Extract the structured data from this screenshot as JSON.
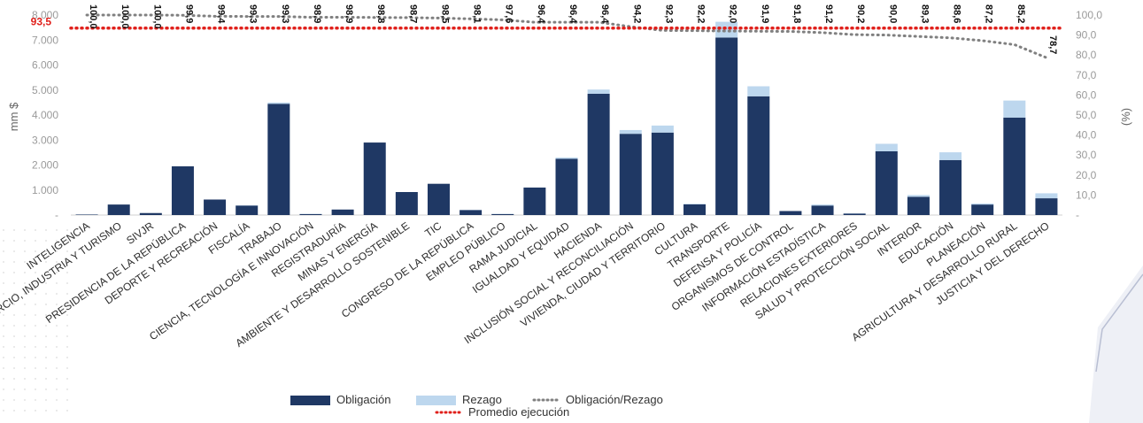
{
  "chart_data": {
    "type": "bar",
    "ylabel_left": "mm $",
    "ylabel_right": "(%)",
    "ylim_left": [
      0,
      8000
    ],
    "ylim_right": [
      0,
      100
    ],
    "left_ticks": [
      "-",
      "1.000",
      "2.000",
      "3.000",
      "4.000",
      "5.000",
      "6.000",
      "7.000",
      "8.000"
    ],
    "right_ticks": [
      "-",
      "10,0",
      "20,0",
      "30,0",
      "40,0",
      "50,0",
      "60,0",
      "70,0",
      "80,0",
      "90,0",
      "100,0"
    ],
    "categories": [
      "INTELIGENCIA",
      "COMERCIO, INDUSTRIA Y TURISMO",
      "SIVJR",
      "PRESIDENCIA DE LA REPÚBLICA",
      "DEPORTE Y RECREACIÓN",
      "FISCALÍA",
      "TRABAJO",
      "CIENCIA, TECNOLOGÍA E INNOVACIÓN",
      "REGISTRADURÍA",
      "MINAS Y ENERGÍA",
      "AMBIENTE Y DESARROLLO SOSTENIBLE",
      "TIC",
      "CONGRESO DE LA REPÚBLICA",
      "EMPLEO PÚBLICO",
      "RAMA JUDICIAL",
      "IGUALDAD Y EQUIDAD",
      "HACIENDA",
      "INCLUSIÓN SOCIAL Y RECONCILIACIÓN",
      "VIVIENDA, CIUDAD Y TERRITORIO",
      "CULTURA",
      "TRANSPORTE",
      "DEFENSA Y POLICÍA",
      "ORGANISMOS DE CONTROL",
      "INFORMACIÓN ESTADÍSTICA",
      "RELACIONES EXTERIORES",
      "SALUD Y PROTECCIÓN SOCIAL",
      "INTERIOR",
      "EDUCACIÓN",
      "PLANEACIÓN",
      "AGRICULTURA Y DESARROLLO RURAL",
      "JUSTICIA Y DEL DERECHO"
    ],
    "series": [
      {
        "name": "Obligación",
        "type": "bar",
        "axis": "left",
        "color": "#1f3864",
        "values": [
          20,
          420,
          80,
          1950,
          620,
          380,
          4450,
          40,
          220,
          2900,
          920,
          1250,
          200,
          40,
          1100,
          2250,
          4850,
          3250,
          3300,
          430,
          7100,
          4750,
          160,
          380,
          60,
          2550,
          730,
          2200,
          420,
          3900,
          670
        ]
      },
      {
        "name": "Rezago",
        "type": "bar-stacked",
        "axis": "left",
        "color": "#bdd7ee",
        "values": [
          0,
          0,
          0,
          0,
          0,
          10,
          50,
          10,
          0,
          0,
          0,
          0,
          10,
          10,
          0,
          50,
          170,
          150,
          280,
          20,
          630,
          400,
          0,
          40,
          10,
          300,
          70,
          310,
          40,
          680,
          200
        ]
      },
      {
        "name": "Obligación/Rezago",
        "type": "line-dotted",
        "axis": "right",
        "color": "#808080",
        "values": [
          100.0,
          100.0,
          100.0,
          99.9,
          99.4,
          99.3,
          99.3,
          98.9,
          98.9,
          98.8,
          98.7,
          98.5,
          98.1,
          97.6,
          96.4,
          96.4,
          96.4,
          94.2,
          92.3,
          92.2,
          92.0,
          91.9,
          91.8,
          91.2,
          90.2,
          90.0,
          89.3,
          88.6,
          87.2,
          85.2,
          78.7
        ],
        "labels": [
          "100,0",
          "100,0",
          "100,0",
          "99,9",
          "99,4",
          "99,3",
          "99,3",
          "98,9",
          "98,9",
          "98,8",
          "98,7",
          "98,5",
          "98,1",
          "97,6",
          "96,4",
          "96,4",
          "96,4",
          "94,2",
          "92,3",
          "92,2",
          "92,0",
          "91,9",
          "91,8",
          "91,2",
          "90,2",
          "90,0",
          "89,3",
          "88,6",
          "87,2",
          "85,2",
          "78,7"
        ]
      }
    ],
    "average": {
      "name": "Promedio ejecución",
      "value": 93.5,
      "label": "93,5",
      "color": "#e0201b"
    },
    "legend": [
      {
        "name": "Obligación",
        "kind": "bar",
        "color": "#1f3864"
      },
      {
        "name": "Rezago",
        "kind": "bar",
        "color": "#bdd7ee"
      },
      {
        "name": "Obligación/Rezago",
        "kind": "dotted",
        "color": "#808080"
      },
      {
        "name": "Promedio ejecución",
        "kind": "dotted",
        "color": "#e0201b"
      }
    ],
    "legend_position": "bottom-center",
    "grid": false
  }
}
